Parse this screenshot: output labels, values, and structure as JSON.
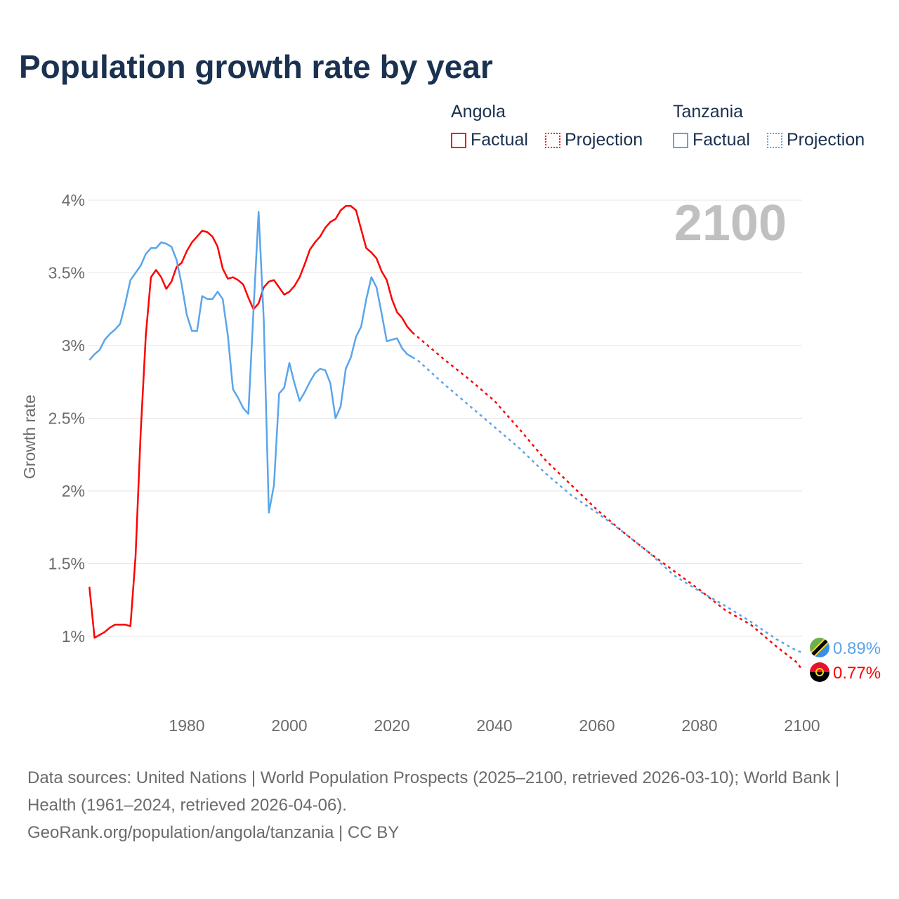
{
  "title": "Population growth rate by year",
  "legend": {
    "groups": [
      {
        "name": "Angola",
        "color": "#ff0000",
        "factual": "Factual",
        "projection": "Projection"
      },
      {
        "name": "Tanzania",
        "color": "#5aa5ea",
        "factual": "Factual",
        "projection": "Projection"
      }
    ]
  },
  "footer": {
    "sources": "Data sources: United Nations | World Population Prospects (2025–2100, retrieved 2026-03-10); World Bank | Health (1961–2024, retrieved 2026-04-06).",
    "credit": "GeoRank.org/population/angola/tanzania | CC BY"
  },
  "chart_data": {
    "type": "line",
    "title": "Population growth rate by year",
    "xlabel": "",
    "ylabel": "Growth rate",
    "year_label": "2100",
    "xlim": [
      1961,
      2100
    ],
    "ylim": [
      1,
      4
    ],
    "yticks": [
      1,
      1.5,
      2,
      2.5,
      3,
      3.5,
      4
    ],
    "ytick_labels": [
      "1%",
      "1.5%",
      "2%",
      "2.5%",
      "3%",
      "3.5%",
      "4%"
    ],
    "xticks": [
      1980,
      2000,
      2020,
      2040,
      2060,
      2080,
      2100
    ],
    "xtick_labels": [
      "1980",
      "2000",
      "2020",
      "2040",
      "2060",
      "2080",
      "2100"
    ],
    "grid": true,
    "legend_position": "top-right",
    "series": [
      {
        "name": "Angola",
        "color": "#ff0000",
        "end_label": "0.77%",
        "factual": {
          "x": [
            1961,
            1962,
            1963,
            1964,
            1965,
            1966,
            1967,
            1968,
            1969,
            1970,
            1971,
            1972,
            1973,
            1974,
            1975,
            1976,
            1977,
            1978,
            1979,
            1980,
            1981,
            1982,
            1983,
            1984,
            1985,
            1986,
            1987,
            1988,
            1989,
            1990,
            1991,
            1992,
            1993,
            1994,
            1995,
            1996,
            1997,
            1998,
            1999,
            2000,
            2001,
            2002,
            2003,
            2004,
            2005,
            2006,
            2007,
            2008,
            2009,
            2010,
            2011,
            2012,
            2013,
            2014,
            2015,
            2016,
            2017,
            2018,
            2019,
            2020,
            2021,
            2022,
            2023,
            2024
          ],
          "y": [
            1.34,
            0.99,
            1.01,
            1.03,
            1.06,
            1.08,
            1.08,
            1.08,
            1.07,
            1.55,
            2.4,
            3.07,
            3.47,
            3.52,
            3.47,
            3.39,
            3.44,
            3.54,
            3.57,
            3.65,
            3.71,
            3.75,
            3.79,
            3.78,
            3.75,
            3.68,
            3.53,
            3.46,
            3.47,
            3.45,
            3.42,
            3.33,
            3.25,
            3.29,
            3.4,
            3.44,
            3.45,
            3.4,
            3.35,
            3.37,
            3.41,
            3.47,
            3.56,
            3.66,
            3.71,
            3.75,
            3.81,
            3.85,
            3.87,
            3.93,
            3.96,
            3.96,
            3.93,
            3.8,
            3.67,
            3.64,
            3.6,
            3.51,
            3.45,
            3.32,
            3.23,
            3.19,
            3.13,
            3.09
          ]
        },
        "projection": {
          "x": [
            2024,
            2025,
            2030,
            2035,
            2040,
            2045,
            2050,
            2055,
            2060,
            2065,
            2070,
            2075,
            2080,
            2085,
            2090,
            2095,
            2099,
            2100
          ],
          "y": [
            3.09,
            3.06,
            2.91,
            2.77,
            2.62,
            2.42,
            2.21,
            2.04,
            1.87,
            1.72,
            1.58,
            1.45,
            1.32,
            1.18,
            1.08,
            0.93,
            0.82,
            0.77
          ]
        }
      },
      {
        "name": "Tanzania",
        "color": "#5aa5ea",
        "end_label": "0.89%",
        "factual": {
          "x": [
            1961,
            1962,
            1963,
            1964,
            1965,
            1966,
            1967,
            1968,
            1969,
            1970,
            1971,
            1972,
            1973,
            1974,
            1975,
            1976,
            1977,
            1978,
            1979,
            1980,
            1981,
            1982,
            1983,
            1984,
            1985,
            1986,
            1987,
            1988,
            1989,
            1990,
            1991,
            1992,
            1993,
            1994,
            1995,
            1996,
            1997,
            1998,
            1999,
            2000,
            2001,
            2002,
            2003,
            2004,
            2005,
            2006,
            2007,
            2008,
            2009,
            2010,
            2011,
            2012,
            2013,
            2014,
            2015,
            2016,
            2017,
            2018,
            2019,
            2020,
            2021,
            2022,
            2023,
            2024
          ],
          "y": [
            2.9,
            2.94,
            2.97,
            3.04,
            3.08,
            3.11,
            3.15,
            3.29,
            3.45,
            3.5,
            3.55,
            3.63,
            3.67,
            3.67,
            3.71,
            3.7,
            3.68,
            3.59,
            3.42,
            3.21,
            3.1,
            3.1,
            3.34,
            3.32,
            3.32,
            3.37,
            3.32,
            3.07,
            2.7,
            2.64,
            2.57,
            2.53,
            3.24,
            3.92,
            3.18,
            1.85,
            2.04,
            2.67,
            2.71,
            2.88,
            2.74,
            2.62,
            2.68,
            2.75,
            2.81,
            2.84,
            2.83,
            2.74,
            2.5,
            2.58,
            2.84,
            2.92,
            3.06,
            3.13,
            3.32,
            3.47,
            3.4,
            3.22,
            3.03,
            3.04,
            3.05,
            2.98,
            2.94,
            2.92
          ]
        },
        "projection": {
          "x": [
            2024,
            2025,
            2030,
            2035,
            2040,
            2045,
            2050,
            2055,
            2060,
            2065,
            2070,
            2075,
            2080,
            2085,
            2090,
            2095,
            2099,
            2100
          ],
          "y": [
            2.92,
            2.9,
            2.74,
            2.59,
            2.44,
            2.29,
            2.12,
            1.97,
            1.85,
            1.72,
            1.58,
            1.42,
            1.31,
            1.21,
            1.1,
            0.98,
            0.9,
            0.89
          ]
        }
      }
    ]
  }
}
